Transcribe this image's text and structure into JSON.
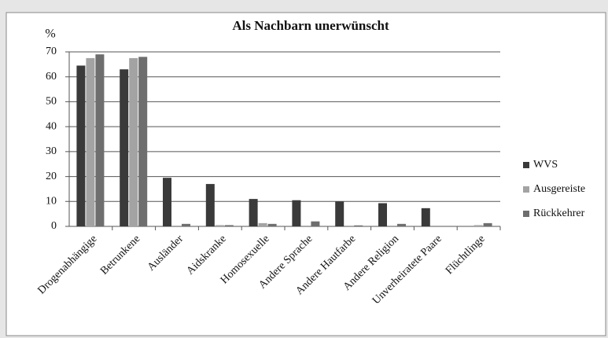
{
  "chart_data": {
    "type": "bar",
    "title": "Als Nachbarn unerwünscht",
    "y_label": "%",
    "categories": [
      "Drogenabhängige",
      "Betrunkene",
      "Ausländer",
      "Aidskranke",
      "Homosexuelle",
      "Andere Sprache",
      "Andere Hautfarbe",
      "Andere Religion",
      "Unverheiratete Paare",
      "Flüchtlinge"
    ],
    "series": [
      {
        "name": "WVS",
        "color": "#3a3a3a",
        "values": [
          64.5,
          63,
          19.5,
          17,
          11,
          10.5,
          10,
          9.3,
          7.3,
          0
        ]
      },
      {
        "name": "Ausgereiste",
        "color": "#a3a3a3",
        "values": [
          67.5,
          67.5,
          0,
          0.5,
          1.3,
          0,
          0,
          0,
          0,
          0.5
        ]
      },
      {
        "name": "Rückkehrer",
        "color": "#6e6e6e",
        "values": [
          69,
          68,
          1,
          0.5,
          1,
          2,
          0.4,
          1,
          0,
          1.3
        ]
      }
    ],
    "ylim": [
      0,
      70
    ],
    "yticks": [
      0,
      10,
      20,
      30,
      40,
      50,
      60,
      70
    ],
    "grid": true,
    "legend": "right"
  }
}
